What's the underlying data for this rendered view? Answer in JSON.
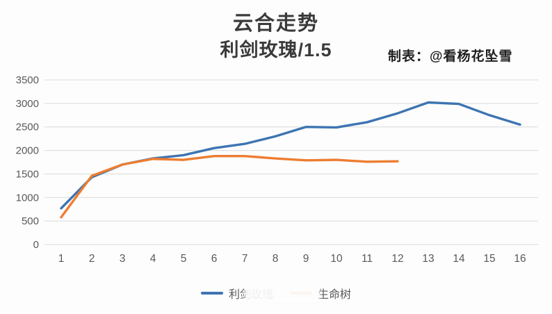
{
  "header": {
    "title": "云合走势",
    "subtitle": "利剑玫瑰/1.5",
    "credit": "制表：@看杨花坠雪"
  },
  "chart_data": {
    "type": "line",
    "title": "云合走势",
    "subtitle": "利剑玫瑰/1.5",
    "x": [
      1,
      2,
      3,
      4,
      5,
      6,
      7,
      8,
      9,
      10,
      11,
      12,
      13,
      14,
      15,
      16
    ],
    "series": [
      {
        "name": "利剑玫瑰",
        "color": "#3d74b2",
        "values": [
          770,
          1430,
          1700,
          1830,
          1900,
          2050,
          2140,
          2300,
          2500,
          2490,
          2600,
          2790,
          3020,
          2990,
          2750,
          2550
        ]
      },
      {
        "name": "生命树",
        "color": "#ed7d31",
        "values": [
          580,
          1460,
          1700,
          1820,
          1800,
          1880,
          1880,
          1830,
          1790,
          1800,
          1760,
          1770
        ]
      }
    ],
    "xlabel": "",
    "ylabel": "",
    "ylim": [
      0,
      3500
    ],
    "yticks": [
      0,
      500,
      1000,
      1500,
      2000,
      2500,
      3000,
      3500
    ],
    "grid": true,
    "legend_position": "bottom"
  }
}
